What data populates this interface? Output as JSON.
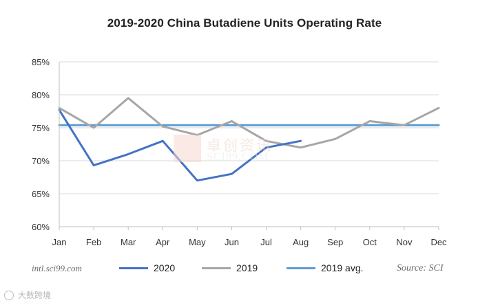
{
  "chart_data": {
    "type": "line",
    "title": "2019-2020 China Butadiene Units Operating Rate",
    "categories": [
      "Jan",
      "Feb",
      "Mar",
      "Apr",
      "May",
      "Jun",
      "Jul",
      "Aug",
      "Sep",
      "Oct",
      "Nov",
      "Dec"
    ],
    "series": [
      {
        "name": "2020",
        "color": "#4472c4",
        "values": [
          77.7,
          69.3,
          71.0,
          73.0,
          67.0,
          68.0,
          72.0,
          73.0,
          null,
          null,
          null,
          null
        ]
      },
      {
        "name": "2019",
        "color": "#a6a6a6",
        "values": [
          78.0,
          75.0,
          79.5,
          75.2,
          73.9,
          76.0,
          73.0,
          72.0,
          73.3,
          76.0,
          75.4,
          78.0
        ]
      },
      {
        "name": "2019 avg.",
        "color": "#5b9bd5",
        "values": [
          75.4,
          75.4,
          75.4,
          75.4,
          75.4,
          75.4,
          75.4,
          75.4,
          75.4,
          75.4,
          75.4,
          75.4
        ]
      }
    ],
    "ylim": [
      60,
      85
    ],
    "yticks": [
      60,
      65,
      70,
      75,
      80,
      85
    ],
    "ytick_labels": [
      "60%",
      "65%",
      "70%",
      "75%",
      "80%",
      "85%"
    ],
    "xlabel": "",
    "ylabel": "",
    "grid": true,
    "legend_position": "bottom"
  },
  "footer": {
    "website": "intl.sci99.com",
    "source": "Source: SCI"
  },
  "watermarks": {
    "center_cn": "卓创资讯",
    "center_en": "SCI99.COM",
    "corner": "大数跨境"
  }
}
